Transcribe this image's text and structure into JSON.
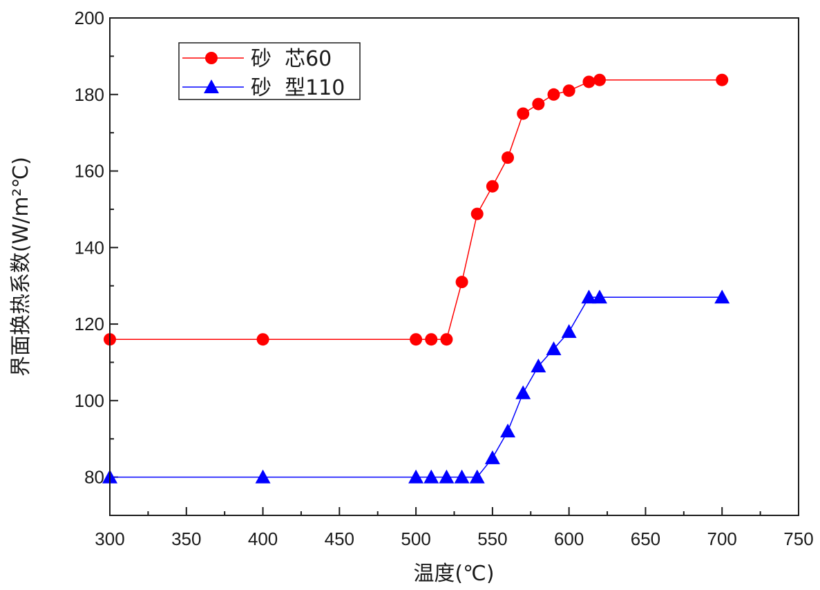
{
  "chart_data": {
    "type": "line",
    "xlabel": "温度(℃)",
    "ylabel": "界面换热系数(W/m²℃)",
    "xlim": [
      300,
      750
    ],
    "ylim": [
      70,
      200
    ],
    "x_ticks": [
      300,
      350,
      400,
      450,
      500,
      550,
      600,
      650,
      700,
      750
    ],
    "y_ticks": [
      80,
      100,
      120,
      140,
      160,
      180,
      200
    ],
    "grid": false,
    "legend_position": "top-left",
    "series": [
      {
        "name": "砂  芯60",
        "color": "#ff0000",
        "marker": "circle",
        "x": [
          300,
          400,
          500,
          510,
          520,
          530,
          540,
          550,
          560,
          570,
          580,
          590,
          600,
          613,
          620,
          700
        ],
        "y": [
          116,
          116,
          116,
          116,
          116,
          131,
          148.8,
          156,
          163.5,
          175,
          177.5,
          180,
          181,
          183.3,
          183.8,
          183.8
        ]
      },
      {
        "name": "砂  型110",
        "color": "#0000ff",
        "marker": "triangle",
        "x": [
          300,
          400,
          500,
          510,
          520,
          530,
          540,
          550,
          560,
          570,
          580,
          590,
          600,
          613,
          620,
          700
        ],
        "y": [
          80,
          80,
          80,
          80,
          80,
          80,
          80,
          85,
          92,
          102,
          109,
          113.5,
          118,
          127,
          127,
          127
        ]
      }
    ]
  }
}
